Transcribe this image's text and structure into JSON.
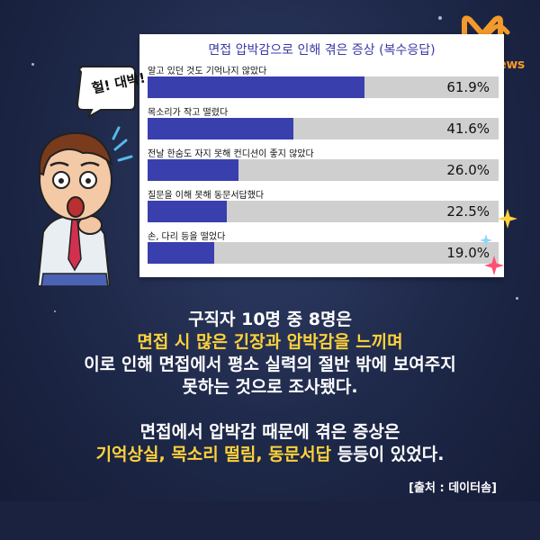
{
  "brand": {
    "logo_text": "must news"
  },
  "bubble": {
    "text": "헐! 대박!"
  },
  "chart_data": {
    "type": "bar",
    "title": "면접 압박감으로 인해 겪은 증상 (복수응답)",
    "categories": [
      "알고 있던 것도 기억나지 않았다",
      "목소리가 작고 떨렸다",
      "전날 한숨도 자지 못해 컨디션이 좋지 않았다",
      "질문을 이해 못해 동문서답했다",
      "손, 다리 등을 떨었다"
    ],
    "values": [
      61.9,
      41.6,
      26.0,
      22.5,
      19.0
    ],
    "value_labels": [
      "61.9%",
      "41.6%",
      "26.0%",
      "22.5%",
      "19.0%"
    ],
    "xlim": [
      0,
      100
    ],
    "bar_color": "#3a3fae",
    "track_color": "#cfcfcf"
  },
  "text": {
    "line1": "구직자 10명 중 8명은",
    "line2": "면접 시 많은 긴장과 압박감을 느끼며",
    "line3": "이로 인해 면접에서 평소 실력의 절반 밖에 보여주지",
    "line4": "못하는 것으로 조사됐다.",
    "line5": "면접에서 압박감 때문에 겪은 증상은",
    "line6_highlight": "기억상실, 목소리 떨림, 동문서답",
    "line6_rest": " 등등이 있었다."
  },
  "source": "[출처 : 데이터솜]",
  "colors": {
    "highlight": "#ffd23a",
    "logo": "#f39a2c",
    "background": "#1d2747"
  }
}
